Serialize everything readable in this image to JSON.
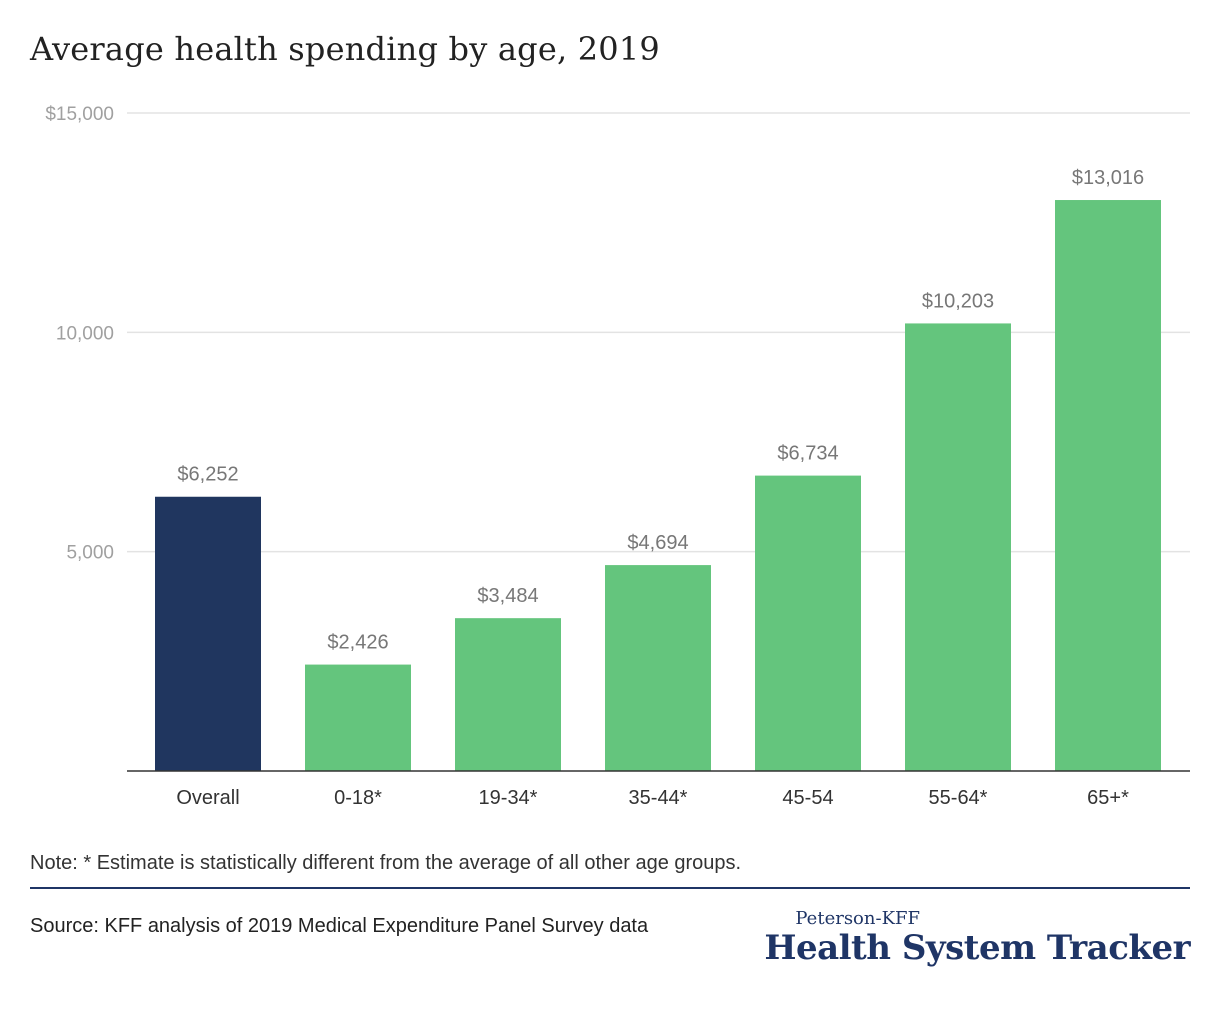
{
  "chart_data": {
    "type": "bar",
    "title": "Average health spending by age, 2019",
    "xlabel": "",
    "ylabel": "",
    "categories": [
      "Overall",
      "0-18*",
      "19-34*",
      "35-44*",
      "45-54",
      "55-64*",
      "65+*"
    ],
    "values": [
      6252,
      2426,
      3484,
      4694,
      6734,
      10203,
      13016
    ],
    "value_labels": [
      "$6,252",
      "$2,426",
      "$3,484",
      "$4,694",
      "$6,734",
      "$10,203",
      "$13,016"
    ],
    "ylim": [
      0,
      15000
    ],
    "yticks": [
      {
        "value": 5000,
        "label": "5,000"
      },
      {
        "value": 10000,
        "label": "10,000"
      },
      {
        "value": 15000,
        "label": "$15,000"
      }
    ],
    "grid": true,
    "bar_colors": [
      "#20365f",
      "#64c57d",
      "#64c57d",
      "#64c57d",
      "#64c57d",
      "#64c57d",
      "#64c57d"
    ]
  },
  "note": "Note: * Estimate is statistically different from the average of all other age groups.",
  "source": "Source: KFF analysis of 2019 Medical Expenditure Panel Survey data",
  "brand": {
    "top": "Peterson-KFF",
    "main": "Health System Tracker"
  },
  "colors": {
    "navy": "#1f3566",
    "green": "#64c57d",
    "grid": "#e3e3e3"
  }
}
